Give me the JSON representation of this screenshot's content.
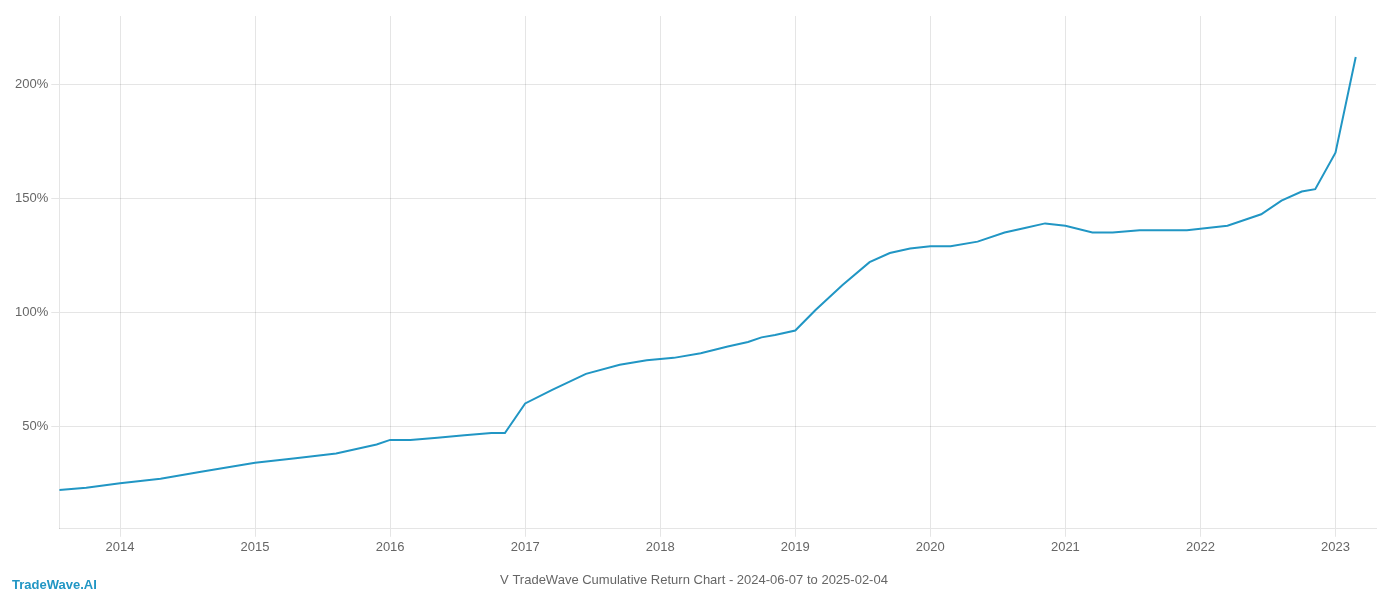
{
  "chart_data": {
    "type": "line",
    "title": "V TradeWave Cumulative Return Chart - 2024-06-07 to 2025-02-04",
    "annotations": [
      "TradeWave.AI"
    ],
    "x": [
      2013.55,
      2013.75,
      2014.0,
      2014.3,
      2014.6,
      2015.0,
      2015.3,
      2015.6,
      2015.9,
      2016.0,
      2016.15,
      2016.35,
      2016.55,
      2016.75,
      2016.85,
      2017.0,
      2017.2,
      2017.45,
      2017.7,
      2017.9,
      2018.1,
      2018.3,
      2018.5,
      2018.65,
      2018.75,
      2018.85,
      2019.0,
      2019.15,
      2019.35,
      2019.55,
      2019.7,
      2019.85,
      2020.0,
      2020.15,
      2020.35,
      2020.55,
      2020.7,
      2020.85,
      2021.0,
      2021.2,
      2021.35,
      2021.55,
      2021.75,
      2021.9,
      2022.05,
      2022.2,
      2022.45,
      2022.6,
      2022.75,
      2022.85,
      2023.0,
      2023.15
    ],
    "values": [
      22,
      23,
      25,
      27,
      30,
      34,
      36,
      38,
      42,
      44,
      44,
      45,
      46,
      47,
      47,
      60,
      66,
      73,
      77,
      79,
      80,
      82,
      85,
      87,
      89,
      90,
      92,
      101,
      112,
      122,
      126,
      128,
      129,
      129,
      131,
      135,
      137,
      139,
      138,
      135,
      135,
      136,
      136,
      136,
      137,
      138,
      143,
      149,
      153,
      154,
      170,
      212
    ],
    "color": "#2196c4",
    "xlim": [
      2013.55,
      2023.3
    ],
    "xticks": [
      2014,
      2015,
      2016,
      2017,
      2018,
      2019,
      2020,
      2021,
      2022,
      2023
    ],
    "ylim": [
      5,
      230
    ],
    "yticks": [
      {
        "value": 50,
        "label": "50%"
      },
      {
        "value": 100,
        "label": "100%"
      },
      {
        "value": 150,
        "label": "150%"
      },
      {
        "value": 200,
        "label": "200%"
      }
    ],
    "grid": true
  }
}
